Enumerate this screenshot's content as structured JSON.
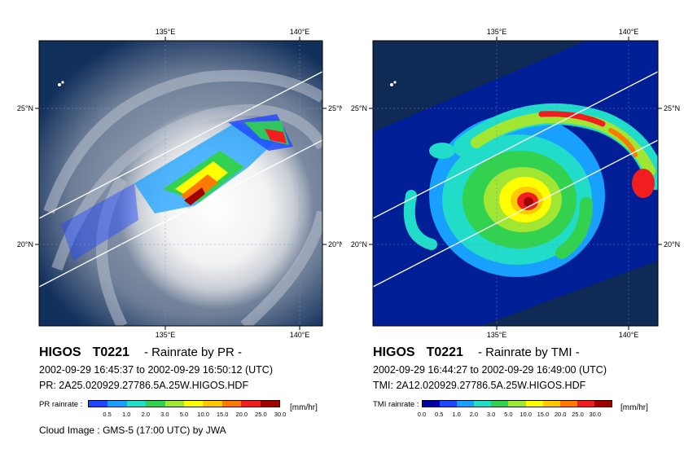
{
  "panels": {
    "left": {
      "storm": "HIGOS",
      "storm_id": "T0221",
      "product": "- Rainrate by PR -",
      "time_range": "2002-09-29 16:45:37  to  2002-09-29 16:50:12 (UTC)",
      "file": "PR: 2A25.020929.27786.5A.25W.HIGOS.HDF",
      "colorbar_label": "PR rainrate :",
      "colorbar_ticks": [
        "0.5",
        "1.0",
        "2.0",
        "3.0",
        "5.0",
        "10.0",
        "15.0",
        "20.0",
        "25.0",
        "30.0"
      ],
      "colorbar_unit": "[mm/hr]",
      "cloud_image_label": "Cloud Image :",
      "cloud_image_source": "GMS-5 (17:00 UTC) by JWA"
    },
    "right": {
      "storm": "HIGOS",
      "storm_id": "T0221",
      "product": "- Rainrate by TMI -",
      "time_range": "2002-09-29 16:44:27  to  2002-09-29 16:49:00 (UTC)",
      "file": "TMI: 2A12.020929.27786.5A.25W.HIGOS.HDF",
      "colorbar_label": "TMI rainrate :",
      "colorbar_ticks": [
        "0.0",
        "0.5",
        "1.0",
        "2.0",
        "3.0",
        "5.0",
        "10.0",
        "15.0",
        "20.0",
        "25.0",
        "30.0"
      ],
      "colorbar_unit": "[mm/hr]"
    }
  },
  "axes": {
    "lon_ticks": [
      "135°E",
      "140°E"
    ],
    "lat_ticks": [
      "25°N",
      "20°N"
    ]
  },
  "colors": {
    "rain_scale": [
      "#0000a0",
      "#1e46ff",
      "#18a0ff",
      "#20dcc8",
      "#32d250",
      "#a0e632",
      "#ffff00",
      "#ffc800",
      "#ff7800",
      "#f01e1e",
      "#a00000"
    ],
    "tmi_background": "#001f96",
    "outside_swath": "#0e2a55",
    "ocean_dark": "#12305c",
    "swath_edge": "#ffffff"
  }
}
